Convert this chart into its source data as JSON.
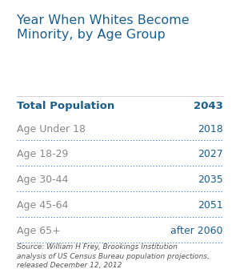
{
  "title": "Year When Whites Become\nMinority, by Age Group",
  "title_color": "#1b5e8b",
  "title_fontsize": 11.5,
  "bg_color": "#ffffff",
  "total_label": "Total Population",
  "total_value": "2043",
  "total_color": "#1b5e8b",
  "total_fontsize": 9.5,
  "rows": [
    {
      "label": "Age Under 18",
      "value": "2018"
    },
    {
      "label": "Age 18-29",
      "value": "2027"
    },
    {
      "label": "Age 30-44",
      "value": "2035"
    },
    {
      "label": "Age 45-64",
      "value": "2051"
    },
    {
      "label": "Age 65+",
      "value": "after 2060"
    }
  ],
  "row_label_color": "#888888",
  "row_value_color": "#1b5e8b",
  "row_fontsize": 9.0,
  "dotted_line_color": "#3a7bbf",
  "source_text": "Source: William H Frey, Brookings Institution\nanalysis of US Census Bureau population projections,\nreleased December 12, 2012",
  "source_fontsize": 6.5,
  "source_color": "#555555"
}
